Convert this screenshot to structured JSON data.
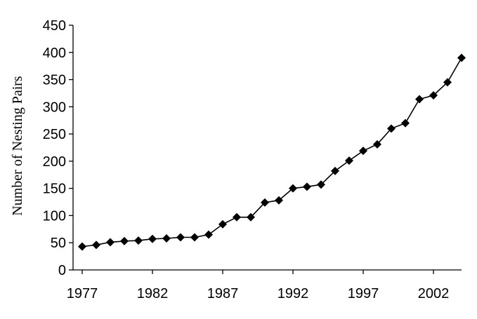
{
  "chart_data": {
    "type": "line",
    "ylabel": "Number of Nesting Pairs",
    "ylim": [
      0,
      450
    ],
    "yticks": [
      0,
      50,
      100,
      150,
      200,
      250,
      300,
      350,
      400,
      450
    ],
    "xlim": [
      1977,
      2004
    ],
    "xticks": [
      1977,
      1982,
      1987,
      1992,
      1997,
      2002
    ],
    "grid": false,
    "legend": "none",
    "marker": "diamond",
    "color": "#000000",
    "series": [
      {
        "x": [
          1977,
          1978,
          1979,
          1980,
          1981,
          1982,
          1983,
          1984,
          1985,
          1986,
          1987,
          1988,
          1989,
          1990,
          1991,
          1992,
          1993,
          1994,
          1995,
          1996,
          1997,
          1998,
          1999,
          2000,
          2001,
          2002,
          2003,
          2004
        ],
        "y": [
          43,
          46,
          51,
          53,
          54,
          57,
          58,
          60,
          60,
          65,
          84,
          97,
          97,
          124,
          128,
          150,
          153,
          157,
          182,
          201,
          219,
          231,
          260,
          270,
          314,
          321,
          345,
          390
        ]
      }
    ]
  }
}
